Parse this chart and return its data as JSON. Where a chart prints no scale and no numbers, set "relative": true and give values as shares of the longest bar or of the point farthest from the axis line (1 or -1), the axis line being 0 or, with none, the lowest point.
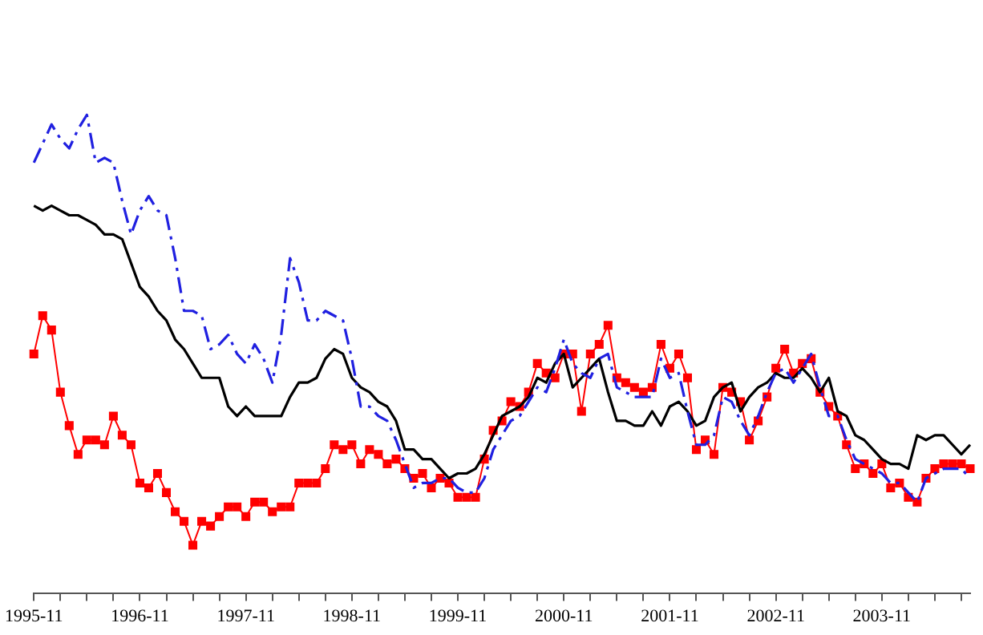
{
  "chart_data": {
    "type": "line",
    "relative": true,
    "legend": false,
    "categories": [
      "1995-11",
      null,
      null,
      null,
      null,
      null,
      null,
      null,
      null,
      null,
      null,
      null,
      "1996-11",
      null,
      null,
      null,
      null,
      null,
      null,
      null,
      null,
      null,
      null,
      null,
      "1997-11",
      null,
      null,
      null,
      null,
      null,
      null,
      null,
      null,
      null,
      null,
      null,
      "1998-11",
      null,
      null,
      null,
      null,
      null,
      null,
      null,
      null,
      null,
      null,
      null,
      "1999-11",
      null,
      null,
      null,
      null,
      null,
      null,
      null,
      null,
      null,
      null,
      null,
      "2000-11",
      null,
      null,
      null,
      null,
      null,
      null,
      null,
      null,
      null,
      null,
      null,
      "2001-11",
      null,
      null,
      null,
      null,
      null,
      null,
      null,
      null,
      null,
      null,
      null,
      "2002-11",
      null,
      null,
      null,
      null,
      null,
      null,
      null,
      null,
      null,
      null,
      null,
      "2003-11",
      null,
      null,
      null,
      null,
      null,
      null,
      null,
      null,
      null,
      null
    ],
    "series": [
      {
        "color": "#2020e0",
        "line_style": "dashed",
        "marker": "none",
        "values": [
          0.9,
          0.94,
          0.98,
          0.95,
          0.93,
          0.97,
          1,
          0.9,
          0.91,
          0.9,
          0.82,
          0.75,
          0.8,
          0.83,
          0.8,
          0.79,
          0.7,
          0.59,
          0.59,
          0.58,
          0.51,
          0.52,
          0.54,
          0.5,
          0.48,
          0.52,
          0.49,
          0.44,
          0.54,
          0.7,
          0.65,
          0.57,
          0.57,
          0.59,
          0.58,
          0.57,
          0.49,
          0.39,
          0.39,
          0.37,
          0.36,
          0.32,
          0.27,
          0.22,
          0.23,
          0.23,
          0.24,
          0.24,
          0.22,
          0.21,
          0.21,
          0.24,
          0.3,
          0.33,
          0.36,
          0.37,
          0.4,
          0.43,
          0.42,
          0.47,
          0.53,
          0.48,
          0.46,
          0.45,
          0.49,
          0.5,
          0.43,
          0.42,
          0.41,
          0.41,
          0.41,
          0.49,
          0.45,
          0.46,
          0.38,
          0.31,
          0.31,
          0.33,
          0.41,
          0.4,
          0.36,
          0.33,
          0.37,
          0.42,
          0.46,
          0.47,
          0.44,
          0.47,
          0.5,
          0.43,
          0.37,
          0.37,
          0.32,
          0.28,
          0.27,
          0.26,
          0.25,
          0.23,
          0.23,
          0.21,
          0.19,
          0.24,
          0.25,
          0.26,
          0.26,
          0.26,
          0.24
        ]
      },
      {
        "color": "#000000",
        "line_style": "solid",
        "marker": "none",
        "values": [
          0.81,
          0.8,
          0.81,
          0.8,
          0.79,
          0.79,
          0.78,
          0.77,
          0.75,
          0.75,
          0.74,
          0.69,
          0.64,
          0.62,
          0.59,
          0.57,
          0.53,
          0.51,
          0.48,
          0.45,
          0.45,
          0.45,
          0.39,
          0.37,
          0.39,
          0.37,
          0.37,
          0.37,
          0.37,
          0.41,
          0.44,
          0.44,
          0.45,
          0.49,
          0.51,
          0.5,
          0.45,
          0.43,
          0.42,
          0.4,
          0.39,
          0.36,
          0.3,
          0.3,
          0.28,
          0.28,
          0.26,
          0.24,
          0.25,
          0.25,
          0.26,
          0.29,
          0.33,
          0.37,
          0.38,
          0.39,
          0.41,
          0.45,
          0.44,
          0.48,
          0.5,
          0.43,
          0.45,
          0.47,
          0.49,
          0.42,
          0.36,
          0.36,
          0.35,
          0.35,
          0.38,
          0.35,
          0.39,
          0.4,
          0.38,
          0.35,
          0.36,
          0.41,
          0.43,
          0.44,
          0.38,
          0.41,
          0.43,
          0.44,
          0.46,
          0.45,
          0.45,
          0.47,
          0.45,
          0.42,
          0.45,
          0.38,
          0.37,
          0.33,
          0.32,
          0.3,
          0.28,
          0.27,
          0.27,
          0.26,
          0.33,
          0.32,
          0.33,
          0.33,
          0.31,
          0.29,
          0.31
        ]
      },
      {
        "color": "#ff0000",
        "line_style": "solid",
        "marker": "square",
        "values": [
          0.5,
          0.58,
          0.55,
          0.42,
          0.35,
          0.29,
          0.32,
          0.32,
          0.31,
          0.37,
          0.33,
          0.31,
          0.23,
          0.22,
          0.25,
          0.21,
          0.17,
          0.15,
          0.1,
          0.15,
          0.14,
          0.16,
          0.18,
          0.18,
          0.16,
          0.19,
          0.19,
          0.17,
          0.18,
          0.18,
          0.23,
          0.23,
          0.23,
          0.26,
          0.31,
          0.3,
          0.31,
          0.27,
          0.3,
          0.29,
          0.27,
          0.28,
          0.26,
          0.24,
          0.25,
          0.22,
          0.24,
          0.23,
          0.2,
          0.2,
          0.2,
          0.28,
          0.34,
          0.36,
          0.4,
          0.39,
          0.42,
          0.48,
          0.46,
          0.45,
          0.5,
          0.5,
          0.38,
          0.5,
          0.52,
          0.56,
          0.45,
          0.44,
          0.43,
          0.42,
          0.43,
          0.52,
          0.47,
          0.5,
          0.45,
          0.3,
          0.32,
          0.29,
          0.43,
          0.42,
          0.4,
          0.32,
          0.36,
          0.41,
          0.47,
          0.51,
          0.46,
          0.48,
          0.49,
          0.42,
          0.39,
          0.37,
          0.31,
          0.26,
          0.27,
          0.25,
          0.27,
          0.22,
          0.23,
          0.2,
          0.19,
          0.24,
          0.26,
          0.27,
          0.27,
          0.27,
          0.26
        ]
      }
    ]
  }
}
